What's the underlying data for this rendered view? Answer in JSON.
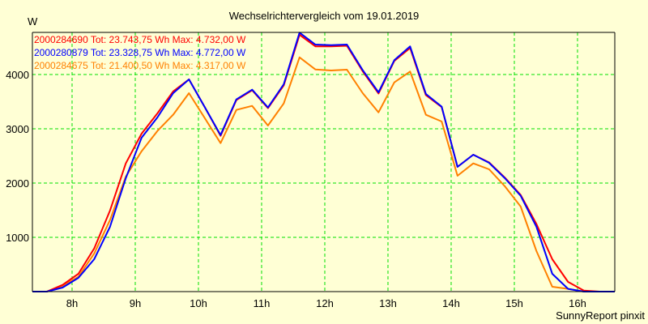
{
  "chart_data": {
    "type": "line",
    "title": "Wechselrichtervergleich vom 19.01.2019",
    "ylabel": "W",
    "xlabel": "",
    "footer": "SunnyReport pinxit",
    "xlim": [
      7.372,
      16.59
    ],
    "ylim": [
      0,
      4776
    ],
    "grid": true,
    "yticks": [
      1000,
      2000,
      3000,
      4000
    ],
    "ytick_labels": [
      "1000",
      "2000",
      "3000",
      "4000"
    ],
    "xticks": [
      8,
      9,
      10,
      11,
      12,
      13,
      14,
      15,
      16
    ],
    "xtick_labels": [
      "8h",
      "9h",
      "10h",
      "11h",
      "12h",
      "13h",
      "14h",
      "15h",
      "16h"
    ],
    "legend_position": "top-left",
    "x": [
      7.35,
      7.6,
      7.85,
      8.1,
      8.35,
      8.6,
      8.85,
      9.1,
      9.35,
      9.6,
      9.85,
      10.1,
      10.35,
      10.6,
      10.85,
      11.1,
      11.35,
      11.6,
      11.85,
      12.1,
      12.35,
      12.6,
      12.85,
      13.1,
      13.35,
      13.6,
      13.85,
      14.1,
      14.35,
      14.6,
      14.85,
      15.1,
      15.35,
      15.6,
      15.85,
      16.1,
      16.35,
      16.59
    ],
    "series": [
      {
        "name": "2000284690",
        "legend": "2000284690 Tot: 23.743,75 Wh Max: 4.732,00 W",
        "color": "#FF0000",
        "values": [
          0,
          0,
          124,
          328,
          796,
          1493,
          2363,
          2910,
          3284,
          3690,
          3910,
          3398,
          2870,
          3530,
          3710,
          3380,
          3800,
          4732,
          4520,
          4520,
          4530,
          4060,
          3650,
          4250,
          4490,
          3620,
          3400,
          2299,
          2522,
          2380,
          2100,
          1780,
          1244,
          597,
          179,
          20,
          0,
          0
        ]
      },
      {
        "name": "2000280879",
        "legend": "2000280879 Tot: 23.328,75 Wh Max: 4.772,00 W",
        "color": "#0000FF",
        "values": [
          0,
          0,
          75,
          254,
          597,
          1194,
          2090,
          2836,
          3209,
          3657,
          3910,
          3398,
          2885,
          3542,
          3721,
          3393,
          3821,
          4772,
          4552,
          4542,
          4552,
          4080,
          3672,
          4264,
          4518,
          3642,
          3408,
          2299,
          2522,
          2373,
          2090,
          1766,
          1194,
          328,
          50,
          0,
          0,
          0
        ]
      },
      {
        "name": "2000284675",
        "legend": "2000284675 Tot: 21.400,50 Wh Max: 4.317,00 W",
        "color": "#FF8000",
        "values": [
          0,
          0,
          104,
          273,
          701,
          1318,
          2120,
          2587,
          2960,
          3259,
          3657,
          3197,
          2736,
          3348,
          3422,
          3060,
          3467,
          4317,
          4094,
          4075,
          4090,
          3657,
          3303,
          3855,
          4055,
          3258,
          3134,
          2134,
          2363,
          2254,
          1940,
          1567,
          746,
          90,
          50,
          0,
          0,
          0
        ]
      }
    ]
  }
}
